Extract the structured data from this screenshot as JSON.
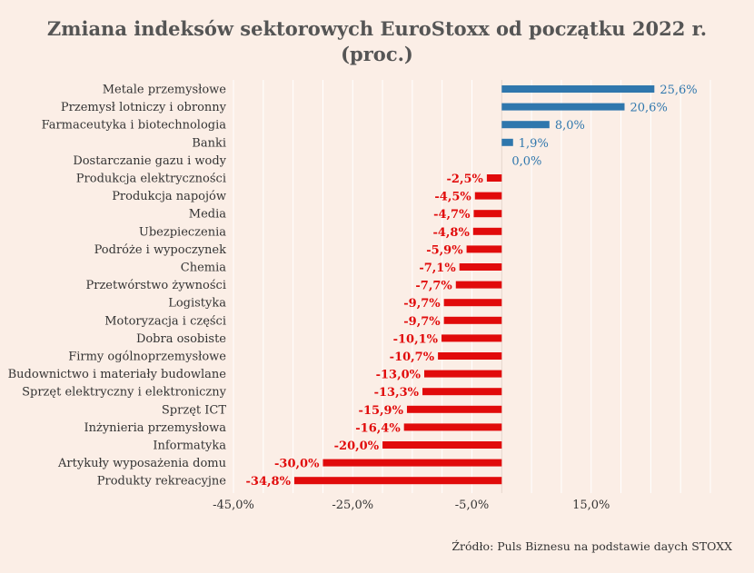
{
  "title_line1": "Zmiana indeksów sektorowych EuroStoxx od początku 2022 r.",
  "title_line2": "(proc.)",
  "source": "Źródło: Puls Biznesu na podstawie daych STOXX",
  "colors": {
    "positive": "#2f77ad",
    "negative": "#e10b0b",
    "background": "#fbeee6",
    "label": "#333333",
    "gridline": "#ffffff"
  },
  "chart_data": {
    "type": "bar",
    "orientation": "horizontal",
    "categories": [
      "Metale przemysłowe",
      "Przemysł lotniczy i obronny",
      "Farmaceutyka i biotechnologia",
      "Banki",
      "Dostarczanie gazu i wody",
      "Produkcja elektryczności",
      "Produkcja napojów",
      "Media",
      "Ubezpieczenia",
      "Podróże i wypoczynek",
      "Chemia",
      "Przetwórstwo żywności",
      "Logistyka",
      "Motoryzacja i części",
      "Dobra osobiste",
      "Firmy ogólnoprzemysłowe",
      "Budownictwo i materiały budowlane",
      "Sprzęt elektryczny i elektroniczny",
      "Sprzęt ICT",
      "Inżynieria przemysłowa",
      "Informatyka",
      "Artykuły wyposażenia domu",
      "Produkty rekreacyjne"
    ],
    "values": [
      25.6,
      20.6,
      8.0,
      1.9,
      0.0,
      -2.5,
      -4.5,
      -4.7,
      -4.8,
      -5.9,
      -7.1,
      -7.7,
      -9.7,
      -9.7,
      -10.1,
      -10.7,
      -13.0,
      -13.3,
      -15.9,
      -16.4,
      -20.0,
      -30.0,
      -34.8
    ],
    "value_labels": [
      "25,6%",
      "20,6%",
      "8,0%",
      "1,9%",
      "0,0%",
      "-2,5%",
      "-4,5%",
      "-4,7%",
      "-4,8%",
      "-5,9%",
      "-7,1%",
      "-7,7%",
      "-9,7%",
      "-9,7%",
      "-10,1%",
      "-10,7%",
      "-13,0%",
      "-13,3%",
      "-15,9%",
      "-16,4%",
      "-20,0%",
      "-30,0%",
      "-34,8%"
    ],
    "xlim": [
      -45,
      35
    ],
    "xticks": [
      -45,
      -25,
      -5,
      15
    ],
    "xtick_labels": [
      "-45,0%",
      "-25,0%",
      "-5,0%",
      "15,0%"
    ],
    "grid": true,
    "legend": "none"
  }
}
